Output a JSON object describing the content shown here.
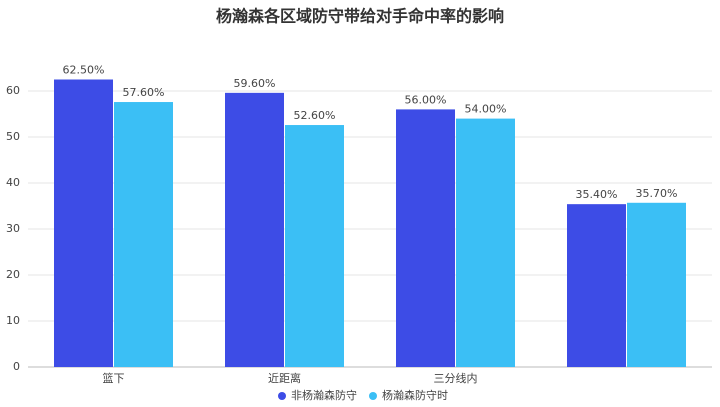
{
  "chart_data": {
    "type": "bar",
    "title": "杨瀚森各区域防守带给对手命中率的影响",
    "categories": [
      "篮下",
      "近距离",
      "三分线内",
      null
    ],
    "series": [
      {
        "name": "非杨瀚森防守",
        "color": "#3d4ce6",
        "values": [
          62.5,
          59.6,
          56.0,
          35.4
        ],
        "value_labels": [
          "62.50%",
          "59.60%",
          "56.00%",
          "35.40%"
        ]
      },
      {
        "name": "杨瀚森防守时",
        "color": "#3bbff5",
        "values": [
          57.6,
          52.6,
          54.0,
          35.7
        ],
        "value_labels": [
          "57.60%",
          "52.60%",
          "54.00%",
          "35.70%"
        ]
      }
    ],
    "ylim": [
      0,
      65
    ],
    "yticks": [
      0,
      10,
      20,
      30,
      40,
      50,
      60
    ],
    "grid": true,
    "legend": "bottom"
  }
}
